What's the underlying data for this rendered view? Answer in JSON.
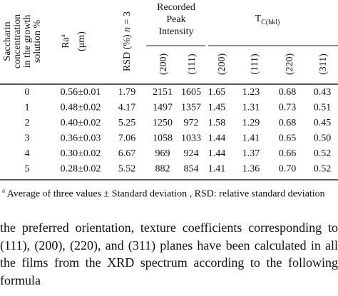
{
  "table": {
    "headers": {
      "saccharin": [
        "Saccharin",
        "concentration",
        "in the growth",
        "solution %"
      ],
      "ra": "Ra",
      "ra_note": "a",
      "ra_unit": "(μm)",
      "rsd": "RSD (%)",
      "rsd_n": "n",
      "rsd_eq": "= 3",
      "peak_group": [
        "Recorded",
        "Peak",
        "Intensity"
      ],
      "tc_group": "T",
      "tc_sub": "C(hkl)",
      "peak_cols": [
        "(200)",
        "(111)"
      ],
      "tc_cols": [
        "(200)",
        "(111)",
        "(220)",
        "(311)"
      ]
    },
    "rows": [
      [
        "0",
        "0.56±0.01",
        "1.79",
        "2151",
        "1605",
        "1.65",
        "1.23",
        "0.68",
        "0.43"
      ],
      [
        "1",
        "0.48±0.02",
        "4.17",
        "1497",
        "1357",
        "1.45",
        "1.31",
        "0.73",
        "0.51"
      ],
      [
        "2",
        "0.40±0.02",
        "5.25",
        "1250",
        "972",
        "1.58",
        "1.29",
        "0.68",
        "0.45"
      ],
      [
        "3",
        "0.36±0.03",
        "7.06",
        "1058",
        "1033",
        "1.44",
        "1.41",
        "0.65",
        "0.50"
      ],
      [
        "4",
        "0.30±0.02",
        "6.67",
        "969",
        "924",
        "1.44",
        "1.37",
        "0.66",
        "0.52"
      ],
      [
        "5",
        "0.28±0.02",
        "5.52",
        "882",
        "854",
        "1.41",
        "1.36",
        "0.70",
        "0.52"
      ]
    ]
  },
  "footnote": {
    "marker": "a",
    "text": "Average of three values ± Standard deviation , RSD: relative standard deviation"
  },
  "paragraph": "the preferred orientation, texture coefficients corresponding to (111), (200), (220), and (311) planes have been calculated in all the films from the XRD spectrum according to the following formula"
}
